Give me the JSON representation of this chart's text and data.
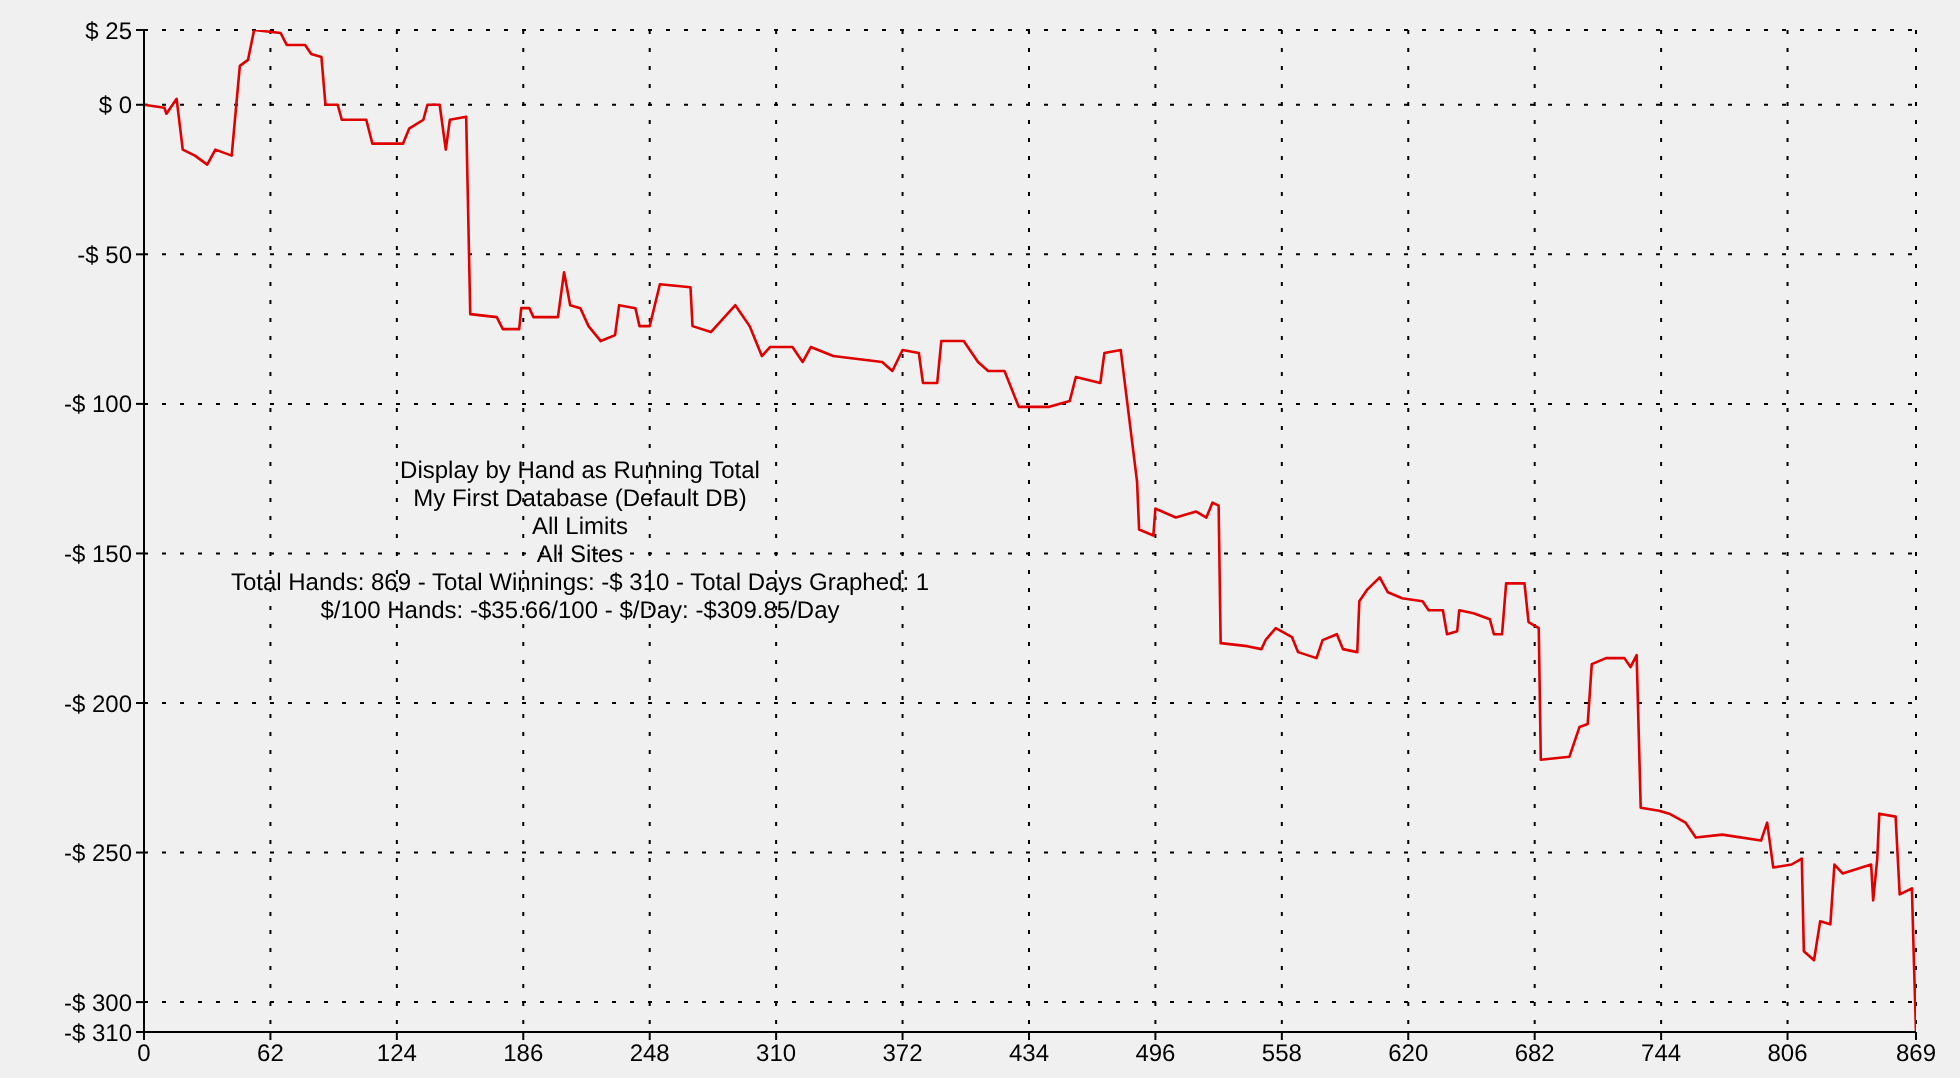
{
  "chart_data": {
    "type": "line",
    "annotations": [
      "Display by Hand as Running Total",
      "My First Database (Default DB)",
      "All Limits",
      "All Sites",
      "Total Hands: 869 - Total Winnings: -$ 310 - Total Days Graphed: 1",
      "$/100 Hands: -$35.66/100 - $/Day: -$309.85/Day"
    ],
    "x": [
      0,
      10,
      11,
      16,
      19,
      25,
      31,
      35,
      43,
      47,
      51,
      54,
      67,
      70,
      79,
      82,
      87,
      89,
      95,
      97,
      109,
      112,
      127,
      130,
      137,
      139,
      145,
      148,
      150,
      158,
      159,
      160,
      173,
      176,
      184,
      185,
      189,
      191,
      203,
      206,
      209,
      214,
      218,
      224,
      231,
      233,
      241,
      243,
      248,
      253,
      268,
      269,
      278,
      290,
      297,
      303,
      307,
      318,
      323,
      327,
      338,
      362,
      367,
      372,
      380,
      382,
      389,
      391,
      402,
      409,
      414,
      422,
      429,
      444,
      454,
      457,
      469,
      471,
      479,
      487,
      488,
      495,
      496,
      506,
      516,
      521,
      524,
      527,
      528,
      541,
      548,
      550,
      555,
      563,
      566,
      575,
      578,
      585,
      588,
      595,
      596,
      600,
      606,
      610,
      617,
      627,
      630,
      637,
      639,
      644,
      645,
      652,
      660,
      662,
      666,
      668,
      677,
      679,
      684,
      685,
      699,
      704,
      708,
      710,
      717,
      726,
      729,
      732,
      734,
      743,
      748,
      756,
      761,
      774,
      793,
      796,
      799,
      808,
      813,
      814,
      819,
      822,
      827,
      829,
      833,
      847,
      848,
      850,
      851,
      859,
      861,
      867,
      868,
      869
    ],
    "series": [
      {
        "color": "#e00000",
        "values": [
          0,
          -1,
          -3,
          2,
          -15,
          -17,
          -20,
          -15,
          -17,
          13,
          15,
          25,
          24,
          20,
          20,
          17,
          16,
          0,
          0,
          -5,
          -5,
          -13,
          -13,
          -8,
          -5,
          0,
          0,
          -15,
          -5,
          -4,
          -37,
          -70,
          -71,
          -75,
          -75,
          -68,
          -68,
          -71,
          -71,
          -56,
          -67,
          -68,
          -74,
          -79,
          -77,
          -67,
          -68,
          -74,
          -74,
          -60,
          -61,
          -74,
          -76,
          -67,
          -74,
          -84,
          -81,
          -81,
          -86,
          -81,
          -84,
          -86,
          -89,
          -82,
          -83,
          -93,
          -93,
          -79,
          -79,
          -86,
          -89,
          -89,
          -101,
          -101,
          -99,
          -91,
          -93,
          -83,
          -82,
          -126,
          -142,
          -144,
          -135,
          -138,
          -136,
          -138,
          -133,
          -134,
          -180,
          -181,
          -182,
          -179,
          -175,
          -178,
          -183,
          -185,
          -179,
          -177,
          -182,
          -183,
          -166,
          -162,
          -158,
          -163,
          -165,
          -166,
          -169,
          -169,
          -177,
          -176,
          -169,
          -170,
          -172,
          -177,
          -177,
          -160,
          -160,
          -173,
          -175,
          -219,
          -218,
          -208,
          -207,
          -187,
          -185,
          -185,
          -188,
          -184,
          -235,
          -236,
          -237,
          -240,
          -245,
          -244,
          -246,
          -240,
          -255,
          -254,
          -252,
          -283,
          -286,
          -273,
          -274,
          -254,
          -257,
          -254,
          -266,
          -252,
          -237,
          -238,
          -264,
          -262,
          -287,
          -310
        ]
      }
    ],
    "xlim": [
      0,
      869
    ],
    "xticks": [
      0,
      62,
      124,
      186,
      248,
      310,
      372,
      434,
      496,
      558,
      620,
      682,
      744,
      806,
      869
    ],
    "ylim": [
      -310,
      25
    ],
    "yticks": [
      {
        "value": 25,
        "label": "$ 25"
      },
      {
        "value": 0,
        "label": "$ 0"
      },
      {
        "value": -50,
        "label": "-$ 50"
      },
      {
        "value": -100,
        "label": "-$ 100"
      },
      {
        "value": -150,
        "label": "-$ 150"
      },
      {
        "value": -200,
        "label": "-$ 200"
      },
      {
        "value": -250,
        "label": "-$ 250"
      },
      {
        "value": -300,
        "label": "-$ 300"
      },
      {
        "value": -310,
        "label": "-$ 310"
      }
    ],
    "grid": true,
    "marker": "none",
    "line_style": "solid",
    "legend": false
  }
}
